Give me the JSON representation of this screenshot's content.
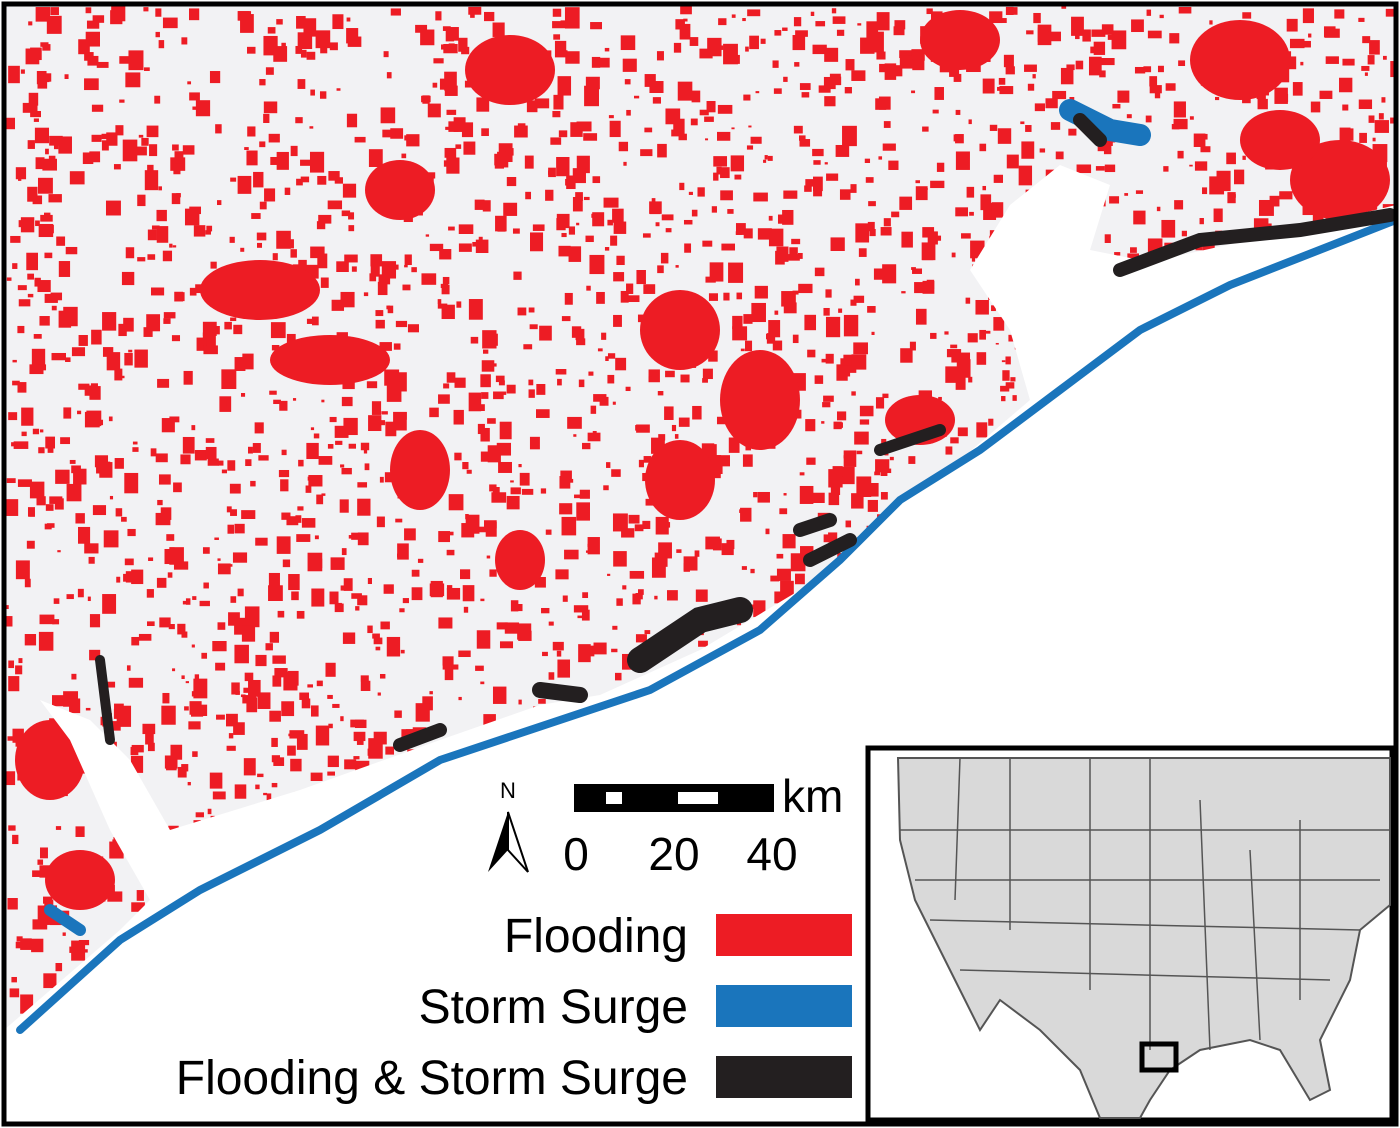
{
  "north_arrow": {
    "label": "N"
  },
  "scale_bar": {
    "unit": "km",
    "ticks": [
      0,
      20,
      40
    ]
  },
  "legend": [
    {
      "label": "Flooding",
      "color": "#ed1c24"
    },
    {
      "label": "Storm Surge",
      "color": "#1a75bc"
    },
    {
      "label": "Flooding & Storm Surge",
      "color": "#231f20"
    }
  ]
}
